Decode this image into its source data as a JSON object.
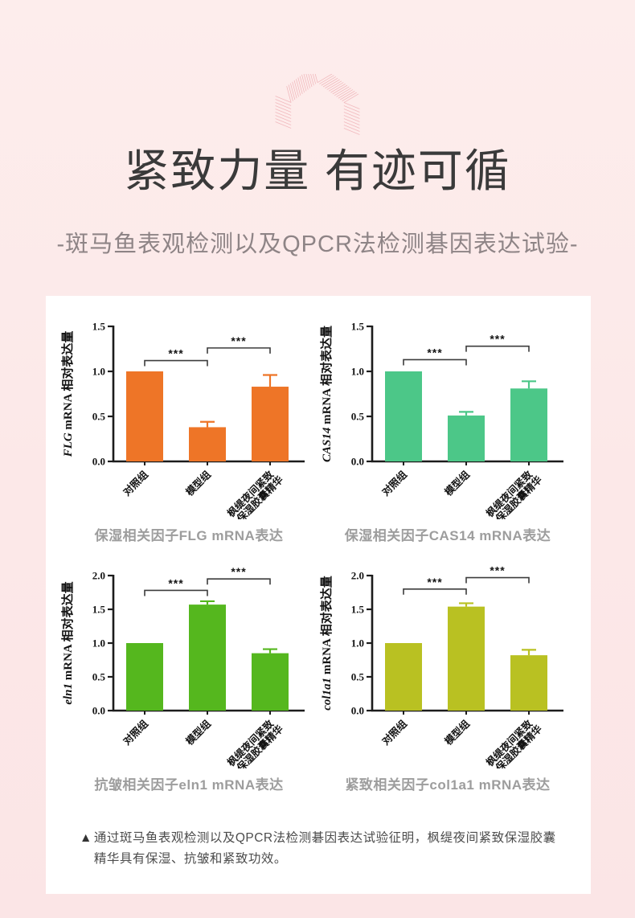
{
  "header": {
    "icon": "house-rays-icon",
    "title": "紧致力量 有迹可循",
    "subtitle": "-斑马鱼表观检测以及QPCR法检测碁因表达试验-"
  },
  "colors": {
    "background_pink": "#fce8e8",
    "card": "#ffffff",
    "title_text": "#3a3a3a",
    "subtitle_text": "#8e8486",
    "caption_text": "#9d9d9d",
    "axis": "#1c1c1c",
    "ray_icon_pink": "#f0b4b9"
  },
  "note": {
    "marker": "▲",
    "text": "通过斑马鱼表观检测以及QPCR法检测碁因表达试验征明，枫缇夜间紧致保湿胶囊精华具有保湿、抗皱和紧致功效。"
  },
  "chart_data": [
    {
      "type": "bar",
      "gene": "FLG",
      "ylabel_suffix": " mRNA 相对表达量",
      "categories": [
        [
          "对照组"
        ],
        [
          "模型组"
        ],
        [
          "枫缇夜间紧致",
          "保湿胶囊精华"
        ]
      ],
      "values": [
        1.0,
        0.38,
        0.83
      ],
      "errors": [
        0,
        0.06,
        0.13
      ],
      "yticks": [
        0.0,
        0.5,
        1.0,
        1.5
      ],
      "ylim": [
        0,
        1.5
      ],
      "bar_color": "#ee7527",
      "significance": [
        {
          "x1": 0,
          "x2": 1,
          "y": 1.12,
          "label": "***"
        },
        {
          "x1": 1,
          "x2": 2,
          "y": 1.26,
          "label": "***"
        }
      ],
      "caption": "保湿相关因子FLG mRNA表达"
    },
    {
      "type": "bar",
      "gene": "CAS14",
      "ylabel_suffix": " mRNA 相对表达量",
      "categories": [
        [
          "对照组"
        ],
        [
          "模型组"
        ],
        [
          "枫缇夜间紧致",
          "保湿胶囊精华"
        ]
      ],
      "values": [
        1.0,
        0.51,
        0.81
      ],
      "errors": [
        0,
        0.04,
        0.08
      ],
      "yticks": [
        0.0,
        0.5,
        1.0,
        1.5
      ],
      "ylim": [
        0,
        1.5
      ],
      "bar_color": "#4cc788",
      "significance": [
        {
          "x1": 0,
          "x2": 1,
          "y": 1.13,
          "label": "***"
        },
        {
          "x1": 1,
          "x2": 2,
          "y": 1.28,
          "label": "***"
        }
      ],
      "caption": "保湿相关因子CAS14 mRNA表达"
    },
    {
      "type": "bar",
      "gene": "eln1",
      "ylabel_suffix": " mRNA 相对表达量",
      "categories": [
        [
          "对照组"
        ],
        [
          "模型组"
        ],
        [
          "枫缇夜间紧致",
          "保湿胶囊精华"
        ]
      ],
      "values": [
        1.0,
        1.57,
        0.85
      ],
      "errors": [
        0,
        0.05,
        0.06
      ],
      "yticks": [
        0.0,
        0.5,
        1.0,
        1.5,
        2.0
      ],
      "ylim": [
        0,
        2.0
      ],
      "bar_color": "#55b71e",
      "significance": [
        {
          "x1": 0,
          "x2": 1,
          "y": 1.78,
          "label": "***"
        },
        {
          "x1": 1,
          "x2": 2,
          "y": 1.95,
          "label": "***"
        }
      ],
      "caption": "抗皱相关因子eln1 mRNA表达"
    },
    {
      "type": "bar",
      "gene": "col1a1",
      "ylabel_suffix": " mRNA 相对表达量",
      "categories": [
        [
          "对照组"
        ],
        [
          "模型组"
        ],
        [
          "枫缇夜间紧致",
          "保湿胶囊精华"
        ]
      ],
      "values": [
        1.0,
        1.54,
        0.82
      ],
      "errors": [
        0,
        0.05,
        0.08
      ],
      "yticks": [
        0.0,
        0.5,
        1.0,
        1.5,
        2.0
      ],
      "ylim": [
        0,
        2.0
      ],
      "bar_color": "#b9c122",
      "significance": [
        {
          "x1": 0,
          "x2": 1,
          "y": 1.8,
          "label": "***"
        },
        {
          "x1": 1,
          "x2": 2,
          "y": 1.97,
          "label": "***"
        }
      ],
      "caption": "紧致相关因子col1a1 mRNA表达"
    }
  ]
}
